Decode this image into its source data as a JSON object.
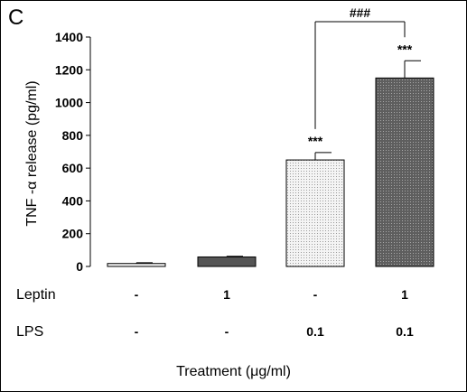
{
  "panel_label": "C",
  "chart_data": {
    "type": "bar",
    "ylabel": "TNF -α release (pg/ml)",
    "xlabel": "Treatment (μg/ml)",
    "ylim": [
      0,
      1400
    ],
    "yticks": [
      0,
      200,
      400,
      600,
      800,
      1000,
      1200,
      1400
    ],
    "series": [
      {
        "values": [
          18,
          58,
          650,
          1150
        ],
        "errors": [
          5,
          4,
          45,
          105
        ],
        "significance": [
          "",
          "",
          "***",
          "***"
        ]
      }
    ],
    "bar_fills": [
      "#f2f2f2",
      "#555555",
      "#e8e8e8",
      "#6a6a6a"
    ],
    "bar_patterns": [
      "none",
      "none",
      "light-dots",
      "dark-dots"
    ],
    "comparison": {
      "from": 2,
      "to": 3,
      "label": "###"
    },
    "treatment_rows": [
      {
        "label": "Leptin",
        "values": [
          "-",
          "1",
          "-",
          "1"
        ]
      },
      {
        "label": "LPS",
        "values": [
          "-",
          "-",
          "0.1",
          "0.1"
        ]
      }
    ]
  }
}
